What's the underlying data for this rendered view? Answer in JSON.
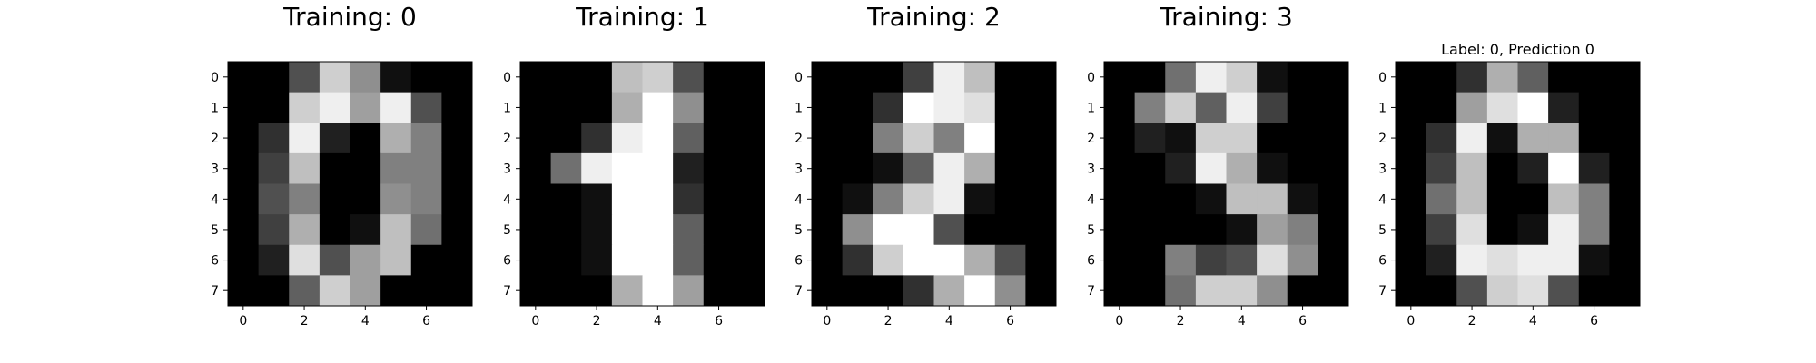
{
  "figure": {
    "background": "#ffffff",
    "colormap": "gray",
    "value_range": [
      0,
      16
    ]
  },
  "chart_data": [
    {
      "type": "heatmap",
      "title": "Training: 0",
      "xticks": [
        0,
        2,
        4,
        6
      ],
      "yticks": [
        0,
        1,
        2,
        3,
        4,
        5,
        6,
        7
      ],
      "values": [
        [
          0,
          0,
          5,
          13,
          9,
          1,
          0,
          0
        ],
        [
          0,
          0,
          13,
          15,
          10,
          15,
          5,
          0
        ],
        [
          0,
          3,
          15,
          2,
          0,
          11,
          8,
          0
        ],
        [
          0,
          4,
          12,
          0,
          0,
          8,
          8,
          0
        ],
        [
          0,
          5,
          8,
          0,
          0,
          9,
          8,
          0
        ],
        [
          0,
          4,
          11,
          0,
          1,
          12,
          7,
          0
        ],
        [
          0,
          2,
          14,
          5,
          10,
          12,
          0,
          0
        ],
        [
          0,
          0,
          6,
          13,
          10,
          0,
          0,
          0
        ]
      ]
    },
    {
      "type": "heatmap",
      "title": "Training: 1",
      "xticks": [
        0,
        2,
        4,
        6
      ],
      "yticks": [
        0,
        1,
        2,
        3,
        4,
        5,
        6,
        7
      ],
      "values": [
        [
          0,
          0,
          0,
          12,
          13,
          5,
          0,
          0
        ],
        [
          0,
          0,
          0,
          11,
          16,
          9,
          0,
          0
        ],
        [
          0,
          0,
          3,
          15,
          16,
          6,
          0,
          0
        ],
        [
          0,
          7,
          15,
          16,
          16,
          2,
          0,
          0
        ],
        [
          0,
          0,
          1,
          16,
          16,
          3,
          0,
          0
        ],
        [
          0,
          0,
          1,
          16,
          16,
          6,
          0,
          0
        ],
        [
          0,
          0,
          1,
          16,
          16,
          6,
          0,
          0
        ],
        [
          0,
          0,
          0,
          11,
          16,
          10,
          0,
          0
        ]
      ]
    },
    {
      "type": "heatmap",
      "title": "Training: 2",
      "xticks": [
        0,
        2,
        4,
        6
      ],
      "yticks": [
        0,
        1,
        2,
        3,
        4,
        5,
        6,
        7
      ],
      "values": [
        [
          0,
          0,
          0,
          4,
          15,
          12,
          0,
          0
        ],
        [
          0,
          0,
          3,
          16,
          15,
          14,
          0,
          0
        ],
        [
          0,
          0,
          8,
          13,
          8,
          16,
          0,
          0
        ],
        [
          0,
          0,
          1,
          6,
          15,
          11,
          0,
          0
        ],
        [
          0,
          1,
          8,
          13,
          15,
          1,
          0,
          0
        ],
        [
          0,
          9,
          16,
          16,
          5,
          0,
          0,
          0
        ],
        [
          0,
          3,
          13,
          16,
          16,
          11,
          5,
          0
        ],
        [
          0,
          0,
          0,
          3,
          11,
          16,
          9,
          0
        ]
      ]
    },
    {
      "type": "heatmap",
      "title": "Training: 3",
      "xticks": [
        0,
        2,
        4,
        6
      ],
      "yticks": [
        0,
        1,
        2,
        3,
        4,
        5,
        6,
        7
      ],
      "values": [
        [
          0,
          0,
          7,
          15,
          13,
          1,
          0,
          0
        ],
        [
          0,
          8,
          13,
          6,
          15,
          4,
          0,
          0
        ],
        [
          0,
          2,
          1,
          13,
          13,
          0,
          0,
          0
        ],
        [
          0,
          0,
          2,
          15,
          11,
          1,
          0,
          0
        ],
        [
          0,
          0,
          0,
          1,
          12,
          12,
          1,
          0
        ],
        [
          0,
          0,
          0,
          0,
          1,
          10,
          8,
          0
        ],
        [
          0,
          0,
          8,
          4,
          5,
          14,
          9,
          0
        ],
        [
          0,
          0,
          7,
          13,
          13,
          9,
          0,
          0
        ]
      ]
    },
    {
      "type": "heatmap",
      "title": "Label: 0, Prediction 0",
      "xticks": [
        0,
        2,
        4,
        6
      ],
      "yticks": [
        0,
        1,
        2,
        3,
        4,
        5,
        6,
        7
      ],
      "values": [
        [
          0,
          0,
          3,
          11,
          6,
          0,
          0,
          0
        ],
        [
          0,
          0,
          10,
          14,
          16,
          2,
          0,
          0
        ],
        [
          0,
          3,
          15,
          1,
          11,
          11,
          0,
          0
        ],
        [
          0,
          4,
          12,
          0,
          2,
          16,
          2,
          0
        ],
        [
          0,
          7,
          12,
          0,
          0,
          12,
          8,
          0
        ],
        [
          0,
          4,
          14,
          0,
          1,
          15,
          8,
          0
        ],
        [
          0,
          2,
          15,
          14,
          15,
          15,
          1,
          0
        ],
        [
          0,
          0,
          5,
          13,
          14,
          5,
          0,
          0
        ]
      ]
    }
  ]
}
